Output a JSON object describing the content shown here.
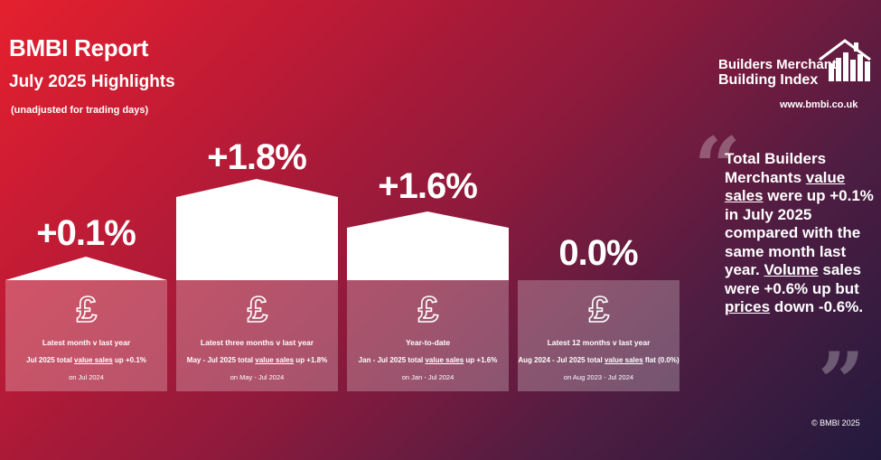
{
  "header": {
    "title": "BMBI Report",
    "subtitle": "July 2025 Highlights",
    "note": "(unadjusted for trading days)"
  },
  "logo": {
    "line1": "Builders Merchant",
    "line2": "Building Index",
    "icon": "house-bar-chart-icon"
  },
  "url": "www.bmbi.co.uk",
  "panels": [
    {
      "percent": "+0.1%",
      "label": "Latest month v last year",
      "desc_pre": "Jul 2025 total ",
      "desc_link": "value sales",
      "desc_post": " up +0.1%",
      "comparison": "on Jul 2024"
    },
    {
      "percent": "+1.8%",
      "label": "Latest three months v last year",
      "desc_pre": "May - Jul 2025 total ",
      "desc_link": "value sales",
      "desc_post": " up +1.8%",
      "comparison": "on May - Jul 2024"
    },
    {
      "percent": "+1.6%",
      "label": "Year-to-date",
      "desc_pre": "Jan - Jul 2025 total ",
      "desc_link": "value sales",
      "desc_post": " up +1.6%",
      "comparison": "on Jan - Jul 2024"
    },
    {
      "percent": "0.0%",
      "label": "Latest 12 months v last year",
      "desc_pre": "Aug 2024 - Jul 2025 total ",
      "desc_link": "value sales",
      "desc_post": " flat (0.0%)",
      "comparison": "on Aug 2023 - Jul 2024"
    }
  ],
  "quote": {
    "t1": "Total Builders Merchants ",
    "u1": "value sales",
    "t2": " were up +0.1% in July 2025 compared with the same month last year. ",
    "u2": "Volume",
    "t3": " sales were +0.6% up but ",
    "u3": "prices",
    "t4": " down -0.6%."
  },
  "copyright": "© BMBI 2025",
  "colors": {
    "gradient_start": "#e5202e",
    "gradient_end": "#221a3d"
  }
}
